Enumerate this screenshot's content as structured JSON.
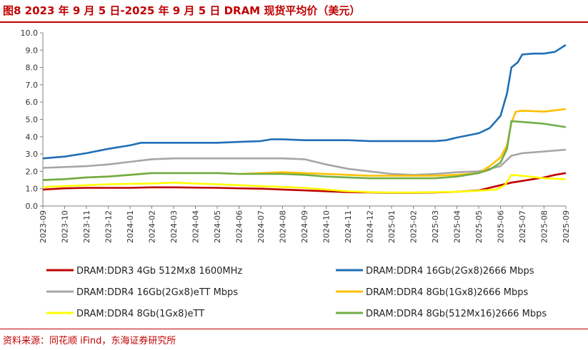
{
  "title": "图8  2023 年 9 月 5 日-2025 年 9 月 5 日 DRAM 现货平均价（美元）",
  "source": "资料来源：同花顺 iFind，东海证券研究所",
  "chart_data": {
    "type": "line",
    "title": "2023 年 9 月 5 日-2025 年 9 月 5 日 DRAM 现货平均价（美元）",
    "xlabel": "",
    "ylabel": "",
    "ylim": [
      0,
      10
    ],
    "yticks": [
      "0.0",
      "1.0",
      "2.0",
      "3.0",
      "4.0",
      "5.0",
      "6.0",
      "7.0",
      "8.0",
      "9.0",
      "10.0"
    ],
    "categories": [
      "2023-09",
      "2023-10",
      "2023-11",
      "2023-12",
      "2024-01",
      "2024-02",
      "2024-03",
      "2024-04",
      "2024-05",
      "2024-06",
      "2024-07",
      "2024-08",
      "2024-09",
      "2024-10",
      "2024-11",
      "2024-12",
      "2025-01",
      "2025-02",
      "2025-03",
      "2025-04",
      "2025-05",
      "2025-06",
      "2025-07",
      "2025-08",
      "2025-09"
    ],
    "grid": false,
    "legend_position": "bottom",
    "series": [
      {
        "name": "DRAM:DDR3 4Gb 512Mx8 1600MHz",
        "color": "#c00000",
        "points": [
          [
            0,
            0.95
          ],
          [
            1,
            1.02
          ],
          [
            2,
            1.05
          ],
          [
            3,
            1.05
          ],
          [
            4,
            1.05
          ],
          [
            5,
            1.08
          ],
          [
            6,
            1.08
          ],
          [
            7,
            1.06
          ],
          [
            8,
            1.05
          ],
          [
            9,
            1.02
          ],
          [
            10,
            1.0
          ],
          [
            11,
            0.95
          ],
          [
            12,
            0.9
          ],
          [
            13,
            0.85
          ],
          [
            14,
            0.8
          ],
          [
            15,
            0.78
          ],
          [
            16,
            0.77
          ],
          [
            17,
            0.77
          ],
          [
            18,
            0.78
          ],
          [
            19,
            0.82
          ],
          [
            20,
            0.9
          ],
          [
            21,
            1.2
          ],
          [
            21.5,
            1.35
          ],
          [
            22,
            1.45
          ],
          [
            22.5,
            1.55
          ],
          [
            23,
            1.65
          ],
          [
            23.5,
            1.8
          ],
          [
            24,
            1.9
          ]
        ]
      },
      {
        "name": "DRAM:DDR4 16Gb(2Gx8)2666 Mbps",
        "color": "#1f6fb5",
        "points": [
          [
            0,
            2.75
          ],
          [
            1,
            2.85
          ],
          [
            2,
            3.05
          ],
          [
            3,
            3.3
          ],
          [
            4,
            3.5
          ],
          [
            4.5,
            3.65
          ],
          [
            5,
            3.65
          ],
          [
            6,
            3.65
          ],
          [
            7,
            3.65
          ],
          [
            8,
            3.65
          ],
          [
            9,
            3.7
          ],
          [
            10,
            3.75
          ],
          [
            10.5,
            3.85
          ],
          [
            11,
            3.85
          ],
          [
            12,
            3.8
          ],
          [
            13,
            3.8
          ],
          [
            14,
            3.8
          ],
          [
            15,
            3.75
          ],
          [
            16,
            3.75
          ],
          [
            17,
            3.75
          ],
          [
            18,
            3.75
          ],
          [
            18.5,
            3.8
          ],
          [
            19,
            3.95
          ],
          [
            20,
            4.2
          ],
          [
            20.5,
            4.5
          ],
          [
            21,
            5.2
          ],
          [
            21.3,
            6.5
          ],
          [
            21.5,
            8.0
          ],
          [
            21.8,
            8.3
          ],
          [
            22,
            8.75
          ],
          [
            22.5,
            8.8
          ],
          [
            23,
            8.8
          ],
          [
            23.5,
            8.9
          ],
          [
            24,
            9.3
          ]
        ]
      },
      {
        "name": "DRAM:DDR4 16Gb(2Gx8)eTT Mbps",
        "color": "#a6a6a6",
        "points": [
          [
            0,
            2.2
          ],
          [
            1,
            2.25
          ],
          [
            2,
            2.3
          ],
          [
            3,
            2.4
          ],
          [
            4,
            2.55
          ],
          [
            5,
            2.7
          ],
          [
            6,
            2.75
          ],
          [
            7,
            2.75
          ],
          [
            8,
            2.75
          ],
          [
            9,
            2.75
          ],
          [
            10,
            2.75
          ],
          [
            11,
            2.75
          ],
          [
            12,
            2.7
          ],
          [
            12.5,
            2.55
          ],
          [
            13,
            2.4
          ],
          [
            14,
            2.15
          ],
          [
            15,
            2.0
          ],
          [
            16,
            1.85
          ],
          [
            17,
            1.8
          ],
          [
            18,
            1.85
          ],
          [
            19,
            1.95
          ],
          [
            20,
            2.0
          ],
          [
            21,
            2.3
          ],
          [
            21.5,
            2.9
          ],
          [
            22,
            3.05
          ],
          [
            23,
            3.15
          ],
          [
            24,
            3.25
          ]
        ]
      },
      {
        "name": "DRAM:DDR4 8Gb(1Gx8)2666 Mbps",
        "color": "#ffc000",
        "points": [
          [
            0,
            1.5
          ],
          [
            1,
            1.55
          ],
          [
            2,
            1.65
          ],
          [
            3,
            1.7
          ],
          [
            4,
            1.8
          ],
          [
            5,
            1.9
          ],
          [
            6,
            1.9
          ],
          [
            7,
            1.9
          ],
          [
            8,
            1.9
          ],
          [
            9,
            1.85
          ],
          [
            10,
            1.9
          ],
          [
            11,
            1.95
          ],
          [
            12,
            1.9
          ],
          [
            13,
            1.85
          ],
          [
            14,
            1.8
          ],
          [
            15,
            1.75
          ],
          [
            16,
            1.75
          ],
          [
            17,
            1.75
          ],
          [
            18,
            1.75
          ],
          [
            19,
            1.8
          ],
          [
            20,
            1.9
          ],
          [
            20.5,
            2.3
          ],
          [
            21,
            2.8
          ],
          [
            21.3,
            3.5
          ],
          [
            21.5,
            4.8
          ],
          [
            21.7,
            5.45
          ],
          [
            22,
            5.5
          ],
          [
            23,
            5.45
          ],
          [
            24,
            5.6
          ]
        ]
      },
      {
        "name": "DRAM:DDR4 8Gb(1Gx8)eTT",
        "color": "#ffff00",
        "points": [
          [
            0,
            1.1
          ],
          [
            1,
            1.15
          ],
          [
            2,
            1.2
          ],
          [
            3,
            1.25
          ],
          [
            4,
            1.28
          ],
          [
            5,
            1.3
          ],
          [
            6,
            1.35
          ],
          [
            7,
            1.3
          ],
          [
            8,
            1.25
          ],
          [
            9,
            1.2
          ],
          [
            10,
            1.15
          ],
          [
            11,
            1.1
          ],
          [
            12,
            1.05
          ],
          [
            13,
            0.95
          ],
          [
            14,
            0.85
          ],
          [
            15,
            0.8
          ],
          [
            16,
            0.78
          ],
          [
            17,
            0.78
          ],
          [
            18,
            0.8
          ],
          [
            19,
            0.82
          ],
          [
            20,
            0.88
          ],
          [
            20.8,
            0.95
          ],
          [
            21.2,
            1.2
          ],
          [
            21.5,
            1.8
          ],
          [
            22,
            1.75
          ],
          [
            23,
            1.6
          ],
          [
            24,
            1.55
          ]
        ]
      },
      {
        "name": "DRAM:DDR4 8Gb(512Mx16)2666 Mbps",
        "color": "#70ad47",
        "points": [
          [
            0,
            1.5
          ],
          [
            1,
            1.55
          ],
          [
            2,
            1.65
          ],
          [
            3,
            1.7
          ],
          [
            4,
            1.8
          ],
          [
            5,
            1.9
          ],
          [
            6,
            1.9
          ],
          [
            7,
            1.9
          ],
          [
            8,
            1.9
          ],
          [
            9,
            1.85
          ],
          [
            10,
            1.85
          ],
          [
            11,
            1.85
          ],
          [
            12,
            1.8
          ],
          [
            13,
            1.7
          ],
          [
            14,
            1.65
          ],
          [
            15,
            1.6
          ],
          [
            16,
            1.6
          ],
          [
            17,
            1.6
          ],
          [
            18,
            1.6
          ],
          [
            19,
            1.7
          ],
          [
            20,
            1.9
          ],
          [
            20.5,
            2.1
          ],
          [
            21,
            2.5
          ],
          [
            21.3,
            3.3
          ],
          [
            21.5,
            4.9
          ],
          [
            22,
            4.85
          ],
          [
            23,
            4.75
          ],
          [
            24,
            4.55
          ]
        ]
      }
    ]
  }
}
